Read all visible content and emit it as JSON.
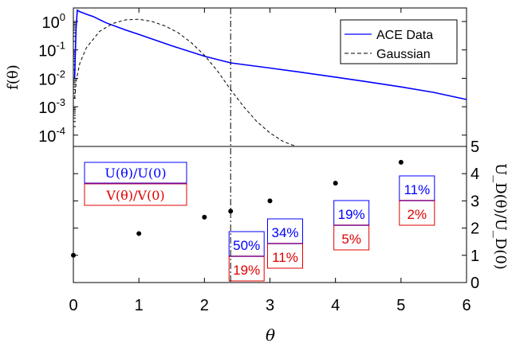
{
  "colors": {
    "blue": "#0000ff",
    "red": "#e00000",
    "black": "#000000"
  },
  "chart_data": [
    {
      "type": "line",
      "panel": "top",
      "ylabel": "f(θ)",
      "yscale": "log",
      "xlim": [
        0,
        6
      ],
      "ylim": [
        4e-05,
        3
      ],
      "y_tick_labels": [
        "10^0",
        "10^-1",
        "10^-2",
        "10^-3",
        "10^-4"
      ],
      "legend": {
        "position": "top-right",
        "entries": [
          "ACE Data",
          "Gaussian"
        ]
      },
      "marker_line_x": 2.4,
      "series": [
        {
          "name": "ACE Data",
          "color": "#0000ff",
          "style": "solid",
          "x": [
            0.02,
            0.04,
            0.06,
            0.1,
            0.15,
            0.2,
            0.3,
            0.5,
            0.8,
            1.0,
            1.5,
            2.0,
            2.4,
            3.0,
            3.5,
            4.0,
            4.5,
            5.0,
            5.5,
            6.0
          ],
          "y": [
            0.01,
            0.5,
            2.5,
            2.2,
            2.0,
            1.8,
            1.5,
            0.9,
            0.5,
            0.35,
            0.14,
            0.06,
            0.035,
            0.023,
            0.016,
            0.011,
            0.0075,
            0.005,
            0.0032,
            0.0018
          ]
        },
        {
          "name": "Gaussian",
          "color": "#000000",
          "style": "dashed",
          "x": [
            0.02,
            0.05,
            0.1,
            0.2,
            0.4,
            0.6,
            0.8,
            1.0,
            1.2,
            1.4,
            1.6,
            1.8,
            2.0,
            2.2,
            2.4,
            2.6,
            2.8,
            3.0,
            3.2,
            3.4
          ],
          "y": [
            0.002,
            0.01,
            0.035,
            0.12,
            0.45,
            0.85,
            1.15,
            1.2,
            1.0,
            0.7,
            0.4,
            0.18,
            0.065,
            0.018,
            0.004,
            0.001,
            0.0003,
            0.00012,
            6e-05,
            4e-05
          ]
        }
      ]
    },
    {
      "type": "scatter",
      "panel": "bottom",
      "xlabel": "θ",
      "ylabel": "U_D(θ)/U_D(0)",
      "xlim": [
        0,
        6
      ],
      "ylim": [
        0,
        5
      ],
      "x_ticks": [
        0,
        1,
        2,
        3,
        4,
        5,
        6
      ],
      "y_ticks": [
        0,
        1,
        2,
        3,
        4,
        5
      ],
      "points": {
        "x": [
          0,
          1,
          2,
          2.4,
          3,
          4,
          5
        ],
        "y": [
          1.0,
          1.8,
          2.4,
          2.62,
          3.0,
          3.65,
          4.42
        ]
      },
      "legend": {
        "entries": [
          "U(θ)/U(0)",
          "V(θ)/V(0)"
        ]
      },
      "annotations": [
        {
          "x": 2.4,
          "top": "50%",
          "bottom": "19%"
        },
        {
          "x": 3.0,
          "top": "34%",
          "bottom": "11%"
        },
        {
          "x": 4.0,
          "top": "19%",
          "bottom": "5%"
        },
        {
          "x": 5.0,
          "top": "11%",
          "bottom": "2%"
        }
      ]
    }
  ]
}
